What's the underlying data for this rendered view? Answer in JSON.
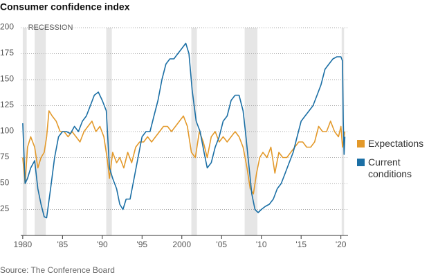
{
  "chart_data": {
    "type": "line",
    "title": "Consumer confidence index",
    "source": "Source: The Conference Board",
    "recession_label": "RECESSION",
    "recessions": [
      [
        1980.0,
        1980.5
      ],
      [
        1981.5,
        1982.9
      ],
      [
        1990.5,
        1991.2
      ],
      [
        2001.2,
        2001.9
      ],
      [
        2007.9,
        2009.5
      ],
      [
        2020.1,
        2020.4
      ]
    ],
    "xlim": [
      1979.75,
      2020.9
    ],
    "xticks": [
      {
        "value": 1980,
        "label": "1980"
      },
      {
        "value": 1985,
        "label": "'85"
      },
      {
        "value": 1990,
        "label": "'90"
      },
      {
        "value": 1995,
        "label": "'95"
      },
      {
        "value": 2000,
        "label": "2000"
      },
      {
        "value": 2005,
        "label": "'05"
      },
      {
        "value": 2010,
        "label": "'10"
      },
      {
        "value": 2015,
        "label": "'15"
      },
      {
        "value": 2020,
        "label": "'20"
      }
    ],
    "ylim": [
      0,
      200
    ],
    "yticks": [
      25,
      50,
      75,
      100,
      125,
      150,
      175,
      200
    ],
    "grid": true,
    "series": [
      {
        "name": "Expectations",
        "color": "#e3992a",
        "x": [
          1980.0,
          1980.3,
          1980.6,
          1981.0,
          1981.5,
          1981.9,
          1982.3,
          1982.7,
          1983.0,
          1983.3,
          1983.7,
          1984.2,
          1984.7,
          1985.2,
          1985.7,
          1986.2,
          1986.7,
          1987.2,
          1987.7,
          1988.2,
          1988.7,
          1989.2,
          1989.7,
          1990.2,
          1990.6,
          1990.9,
          1991.3,
          1991.8,
          1992.2,
          1992.7,
          1993.2,
          1993.7,
          1994.2,
          1994.7,
          1995.2,
          1995.7,
          1996.2,
          1996.7,
          1997.2,
          1997.7,
          1998.2,
          1998.7,
          1999.2,
          1999.7,
          2000.2,
          2000.7,
          2001.2,
          2001.7,
          2002.2,
          2002.7,
          2003.2,
          2003.7,
          2004.2,
          2004.7,
          2005.2,
          2005.7,
          2006.2,
          2006.7,
          2007.2,
          2007.7,
          2008.2,
          2008.6,
          2009.0,
          2009.4,
          2009.8,
          2010.2,
          2010.7,
          2011.2,
          2011.7,
          2012.2,
          2012.7,
          2013.2,
          2013.7,
          2014.2,
          2014.7,
          2015.2,
          2015.7,
          2016.2,
          2016.7,
          2017.2,
          2017.7,
          2018.2,
          2018.7,
          2019.2,
          2019.7,
          2020.0,
          2020.2,
          2020.4,
          2020.5
        ],
        "values": [
          75,
          50,
          85,
          95,
          85,
          65,
          75,
          80,
          95,
          120,
          115,
          110,
          100,
          100,
          95,
          100,
          95,
          90,
          100,
          105,
          110,
          100,
          105,
          95,
          75,
          55,
          80,
          70,
          75,
          65,
          80,
          70,
          85,
          90,
          90,
          95,
          90,
          95,
          100,
          105,
          105,
          100,
          105,
          110,
          115,
          105,
          80,
          75,
          100,
          90,
          75,
          95,
          100,
          90,
          95,
          90,
          95,
          100,
          95,
          85,
          65,
          45,
          40,
          60,
          75,
          80,
          75,
          85,
          60,
          80,
          75,
          75,
          80,
          85,
          90,
          90,
          85,
          85,
          90,
          105,
          100,
          100,
          110,
          100,
          95,
          105,
          85,
          95,
          100
        ]
      },
      {
        "name": "Current conditions",
        "color": "#1b6fa5",
        "x": [
          1980.0,
          1980.3,
          1980.6,
          1981.0,
          1981.5,
          1981.9,
          1982.3,
          1982.7,
          1983.0,
          1983.5,
          1984.0,
          1984.5,
          1985.0,
          1985.5,
          1986.0,
          1986.5,
          1987.0,
          1987.5,
          1988.0,
          1988.5,
          1989.0,
          1989.5,
          1990.0,
          1990.5,
          1990.9,
          1991.3,
          1991.8,
          1992.2,
          1992.6,
          1993.0,
          1993.5,
          1994.0,
          1994.5,
          1995.0,
          1995.5,
          1996.0,
          1996.5,
          1997.0,
          1997.5,
          1998.0,
          1998.5,
          1999.0,
          1999.5,
          2000.0,
          2000.5,
          2000.9,
          2001.3,
          2001.8,
          2002.3,
          2002.8,
          2003.2,
          2003.7,
          2004.2,
          2004.7,
          2005.2,
          2005.7,
          2006.2,
          2006.7,
          2007.2,
          2007.7,
          2008.0,
          2008.4,
          2008.8,
          2009.2,
          2009.6,
          2010.0,
          2010.5,
          2011.0,
          2011.5,
          2012.0,
          2012.5,
          2013.0,
          2013.5,
          2014.0,
          2014.5,
          2015.0,
          2015.5,
          2016.0,
          2016.5,
          2017.0,
          2017.5,
          2018.0,
          2018.5,
          2019.0,
          2019.5,
          2020.0,
          2020.2,
          2020.3,
          2020.4,
          2020.5
        ],
        "values": [
          108,
          50,
          55,
          65,
          72,
          45,
          30,
          18,
          17,
          45,
          75,
          95,
          100,
          100,
          98,
          105,
          100,
          110,
          115,
          125,
          135,
          138,
          130,
          120,
          65,
          55,
          45,
          30,
          25,
          35,
          35,
          55,
          75,
          95,
          100,
          100,
          115,
          130,
          150,
          165,
          170,
          170,
          175,
          180,
          185,
          175,
          140,
          110,
          100,
          80,
          65,
          70,
          85,
          95,
          110,
          115,
          130,
          135,
          135,
          120,
          100,
          70,
          40,
          25,
          22,
          25,
          28,
          30,
          35,
          45,
          50,
          60,
          70,
          80,
          95,
          110,
          115,
          120,
          125,
          135,
          145,
          160,
          165,
          170,
          172,
          172,
          168,
          110,
          78,
          95
        ]
      }
    ]
  }
}
